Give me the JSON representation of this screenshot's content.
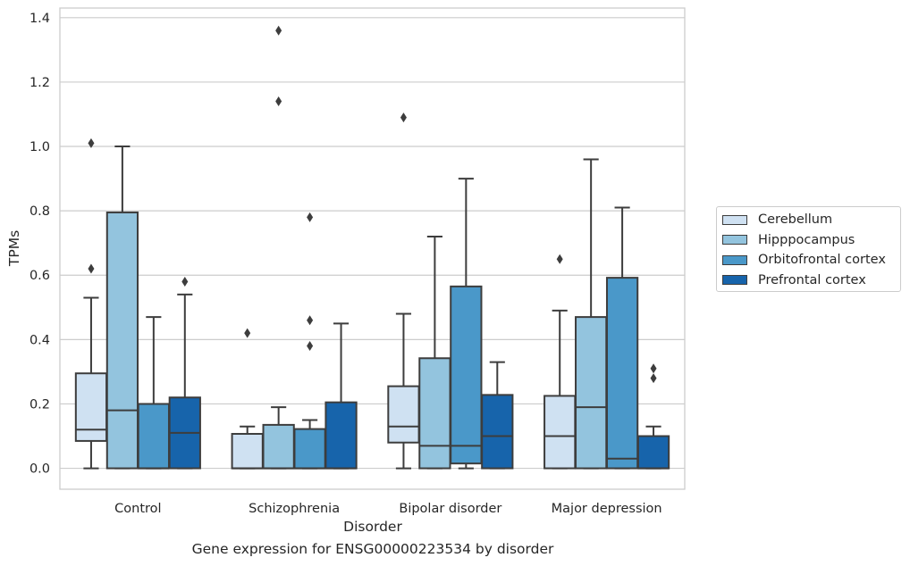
{
  "caption": "Gene expression for ENSG00000223534 by disorder",
  "chart_data": {
    "type": "box",
    "xlabel": "Disorder",
    "ylabel": "TPMs",
    "ylim": [
      -0.065,
      1.43
    ],
    "yticks": [
      0.0,
      0.2,
      0.4,
      0.6,
      0.8,
      1.0,
      1.2,
      1.4
    ],
    "ytick_labels": [
      "0.0",
      "0.2",
      "0.4",
      "0.6",
      "0.8",
      "1.0",
      "1.2",
      "1.4"
    ],
    "grid": "horizontal",
    "legend_position": "right",
    "categories": [
      "Control",
      "Schizophrenia",
      "Bipolar disorder",
      "Major depression"
    ],
    "series": [
      {
        "name": "Cerebellum",
        "color": "#cfe1f2",
        "boxes": [
          {
            "whislo": 0.0,
            "q1": 0.085,
            "med": 0.12,
            "q3": 0.295,
            "whishi": 0.53,
            "fliers": [
              0.62,
              1.01
            ]
          },
          {
            "whislo": 0.0,
            "q1": 0.0,
            "med": 0.0,
            "q3": 0.107,
            "whishi": 0.13,
            "fliers": [
              0.42
            ]
          },
          {
            "whislo": 0.0,
            "q1": 0.08,
            "med": 0.13,
            "q3": 0.255,
            "whishi": 0.48,
            "fliers": [
              1.09
            ]
          },
          {
            "whislo": 0.0,
            "q1": 0.0,
            "med": 0.1,
            "q3": 0.225,
            "whishi": 0.49,
            "fliers": [
              0.65
            ]
          }
        ]
      },
      {
        "name": "Hipppocampus",
        "color": "#93c4de",
        "boxes": [
          {
            "whislo": 0.0,
            "q1": 0.0,
            "med": 0.18,
            "q3": 0.795,
            "whishi": 1.0,
            "fliers": []
          },
          {
            "whislo": 0.0,
            "q1": 0.0,
            "med": 0.0,
            "q3": 0.135,
            "whishi": 0.19,
            "fliers": [
              1.14,
              1.36
            ]
          },
          {
            "whislo": 0.0,
            "q1": 0.0,
            "med": 0.07,
            "q3": 0.342,
            "whishi": 0.72,
            "fliers": []
          },
          {
            "whislo": 0.0,
            "q1": 0.0,
            "med": 0.19,
            "q3": 0.47,
            "whishi": 0.96,
            "fliers": []
          }
        ]
      },
      {
        "name": "Orbitofrontal cortex",
        "color": "#4a98c9",
        "boxes": [
          {
            "whislo": 0.0,
            "q1": 0.0,
            "med": 0.0,
            "q3": 0.2,
            "whishi": 0.47,
            "fliers": []
          },
          {
            "whislo": 0.0,
            "q1": 0.0,
            "med": 0.0,
            "q3": 0.122,
            "whishi": 0.15,
            "fliers": [
              0.38,
              0.46,
              0.78
            ]
          },
          {
            "whislo": 0.0,
            "q1": 0.015,
            "med": 0.07,
            "q3": 0.565,
            "whishi": 0.9,
            "fliers": []
          },
          {
            "whislo": 0.0,
            "q1": 0.0,
            "med": 0.03,
            "q3": 0.592,
            "whishi": 0.81,
            "fliers": []
          }
        ]
      },
      {
        "name": "Prefrontal cortex",
        "color": "#1764ab",
        "boxes": [
          {
            "whislo": 0.0,
            "q1": 0.0,
            "med": 0.11,
            "q3": 0.22,
            "whishi": 0.54,
            "fliers": [
              0.58
            ]
          },
          {
            "whislo": 0.0,
            "q1": 0.0,
            "med": 0.0,
            "q3": 0.205,
            "whishi": 0.45,
            "fliers": []
          },
          {
            "whislo": 0.0,
            "q1": 0.0,
            "med": 0.1,
            "q3": 0.228,
            "whishi": 0.33,
            "fliers": []
          },
          {
            "whislo": 0.0,
            "q1": 0.0,
            "med": 0.0,
            "q3": 0.1,
            "whishi": 0.13,
            "fliers": [
              0.28,
              0.31
            ]
          }
        ]
      }
    ]
  }
}
